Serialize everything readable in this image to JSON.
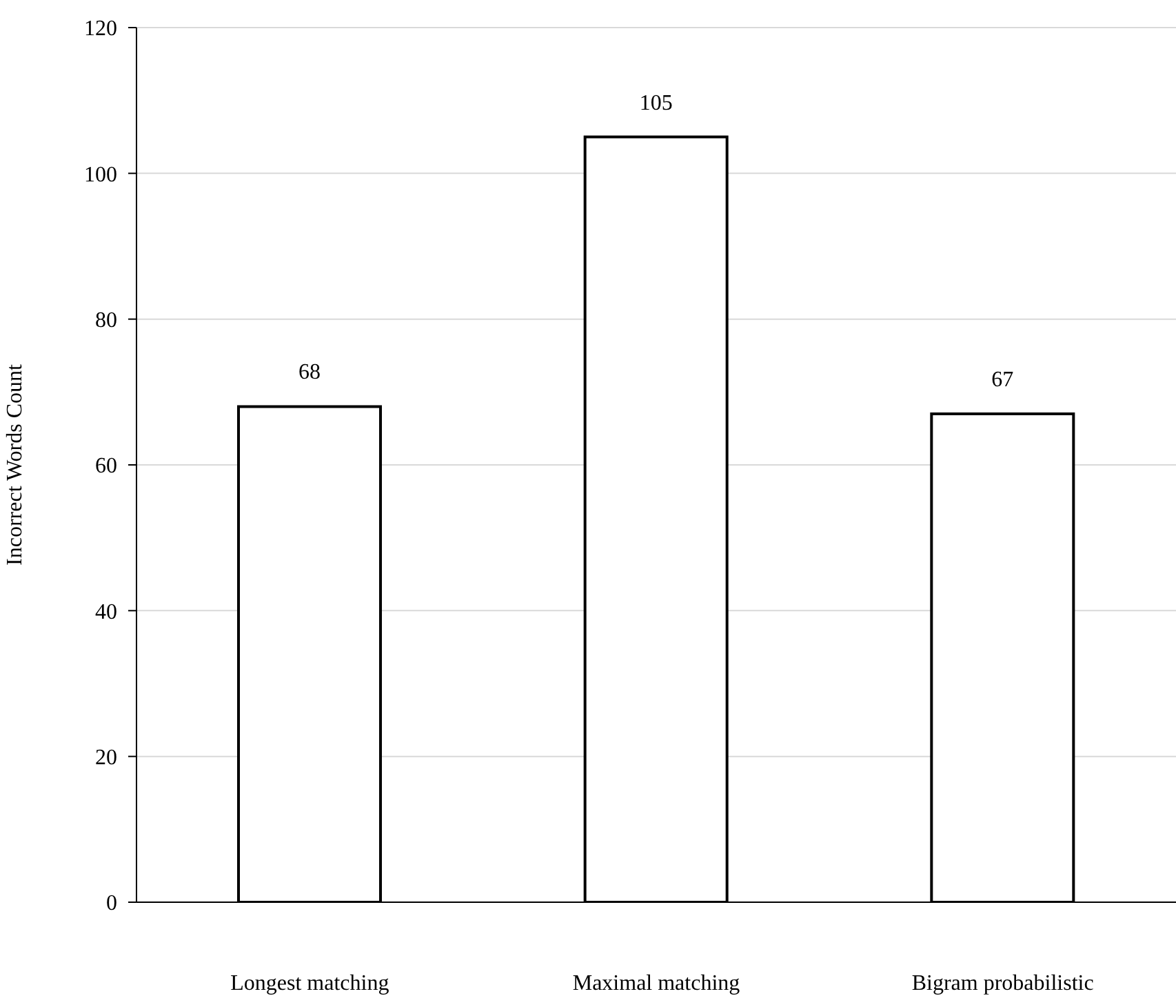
{
  "chart_data": {
    "type": "bar",
    "categories": [
      "Longest matching",
      "Maximal matching",
      "Bigram probabilistic"
    ],
    "values": [
      68,
      105,
      67
    ],
    "color": "#ffffff",
    "ylabel": "Incorrect Words Count",
    "ylim": [
      0,
      120
    ],
    "yticks": [
      0,
      20,
      40,
      60,
      80,
      100,
      120
    ],
    "grid": "y",
    "data_labels": true
  }
}
